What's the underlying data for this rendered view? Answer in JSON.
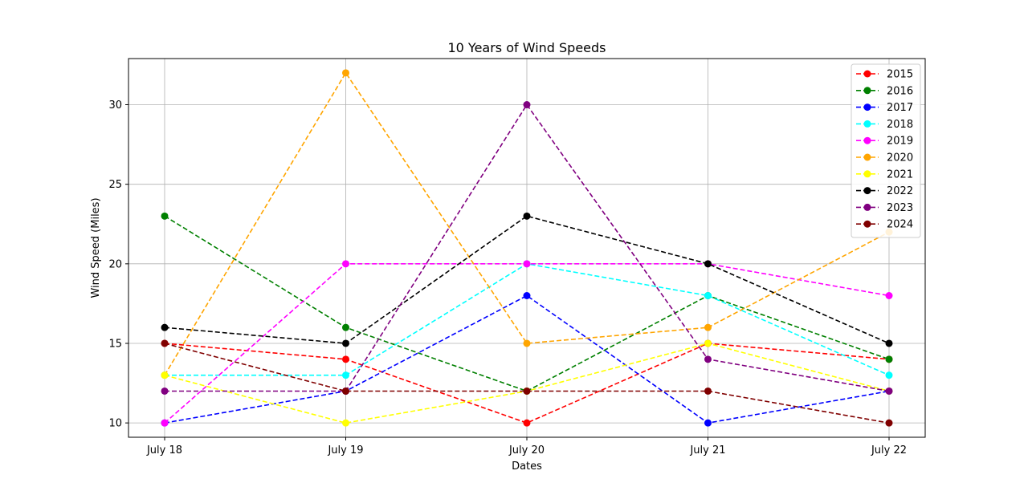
{
  "chart_data": {
    "type": "line",
    "title": "10 Years of Wind Speeds",
    "xlabel": "Dates",
    "ylabel": "Wind Speed (Miles)",
    "categories": [
      "July 18",
      "July 19",
      "July 20",
      "July 21",
      "July 22"
    ],
    "yticks": [
      "10",
      "15",
      "20",
      "25",
      "30"
    ],
    "ylim": [
      9.1,
      32.9
    ],
    "grid": true,
    "legend_position": "top-right",
    "line_style": "dashed",
    "marker": "circle",
    "series": [
      {
        "name": "2015",
        "color": "#ff0000",
        "values": [
          15,
          14,
          10,
          15,
          14
        ]
      },
      {
        "name": "2016",
        "color": "#008000",
        "values": [
          23,
          16,
          12,
          18,
          14
        ]
      },
      {
        "name": "2017",
        "color": "#0000ff",
        "values": [
          10,
          12,
          18,
          10,
          12
        ]
      },
      {
        "name": "2018",
        "color": "#00ffff",
        "values": [
          13,
          13,
          20,
          18,
          13
        ]
      },
      {
        "name": "2019",
        "color": "#ff00ff",
        "values": [
          10,
          20,
          20,
          20,
          18
        ]
      },
      {
        "name": "2020",
        "color": "#ffa500",
        "values": [
          13,
          32,
          15,
          16,
          22
        ]
      },
      {
        "name": "2021",
        "color": "#ffff00",
        "values": [
          13,
          10,
          12,
          15,
          12
        ]
      },
      {
        "name": "2022",
        "color": "#000000",
        "values": [
          16,
          15,
          23,
          20,
          15
        ]
      },
      {
        "name": "2023",
        "color": "#800080",
        "values": [
          12,
          12,
          30,
          14,
          12
        ]
      },
      {
        "name": "2024",
        "color": "#800000",
        "values": [
          15,
          12,
          12,
          12,
          10
        ]
      }
    ]
  }
}
